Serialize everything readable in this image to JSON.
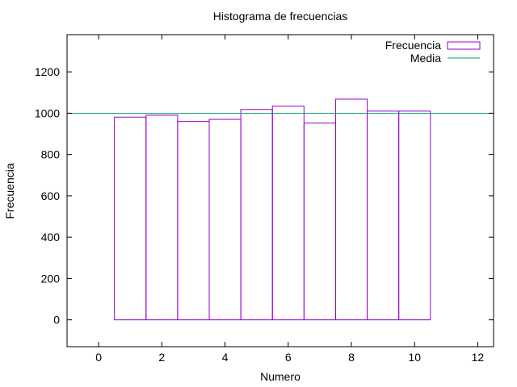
{
  "chart_data": {
    "type": "bar",
    "title": "Histograma de frecuencias",
    "xlabel": "Numero",
    "ylabel": "Frecuencia",
    "xlim": [
      -1,
      12.5
    ],
    "ylim": [
      -130,
      1380
    ],
    "xticks": [
      0,
      2,
      4,
      6,
      8,
      10,
      12
    ],
    "yticks": [
      0,
      200,
      400,
      600,
      800,
      1000,
      1200
    ],
    "grid": false,
    "legend_position": "top-right",
    "x": [
      1,
      2,
      3,
      4,
      5,
      6,
      7,
      8,
      9,
      10
    ],
    "series": [
      {
        "name": "Frecuencia",
        "kind": "bar",
        "color": "#9400d3",
        "bar_width": 1,
        "values": [
          981,
          990,
          960,
          970,
          1018,
          1034,
          952,
          1068,
          1010,
          1010
        ]
      },
      {
        "name": "Media",
        "kind": "hline",
        "color": "#009e73",
        "value": 999.3
      }
    ]
  }
}
